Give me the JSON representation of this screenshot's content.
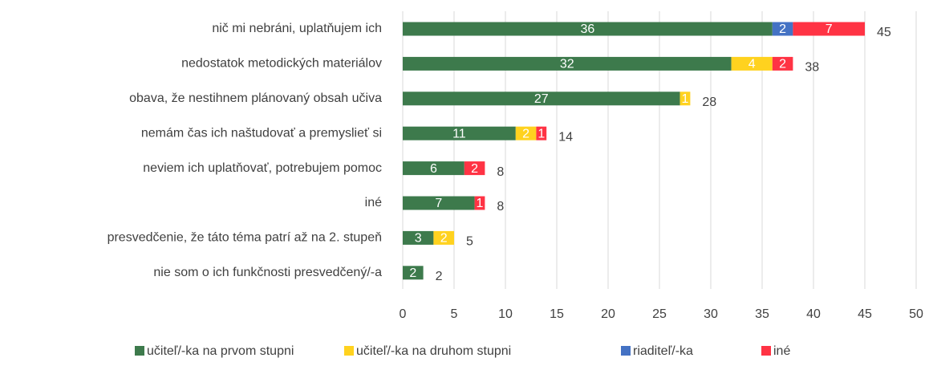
{
  "chart_data": {
    "type": "stacked-bar-horizontal",
    "categories": [
      "nič mi nebráni, uplatňujem ich",
      "nedostatok metodických materiálov",
      "obava, že nestihnem plánovaný obsah učiva",
      "nemám čas ich naštudovať a premyslieť si",
      "neviem ich uplatňovať, potrebujem pomoc",
      "iné",
      "presvedčenie, že táto téma patrí až na 2. stupeň",
      "nie som o ich funkčnosti presvedčený/-a"
    ],
    "series": [
      {
        "name": "učiteľ/-ka na prvom stupni",
        "color": "#3d7a4c",
        "values": [
          36,
          32,
          27,
          11,
          6,
          7,
          3,
          2
        ]
      },
      {
        "name": "učiteľ/-ka na druhom stupni",
        "color": "#ffd21f",
        "values": [
          null,
          4,
          1,
          2,
          null,
          null,
          2,
          null
        ]
      },
      {
        "name": "riaditeľ/-ka",
        "color": "#4472c4",
        "values": [
          2,
          null,
          null,
          null,
          null,
          null,
          null,
          null
        ]
      },
      {
        "name": "iné",
        "color": "#ff3344",
        "values": [
          7,
          2,
          null,
          1,
          2,
          1,
          null,
          null
        ]
      }
    ],
    "totals": [
      45,
      38,
      28,
      14,
      8,
      8,
      5,
      2
    ],
    "xlim": [
      0,
      50
    ],
    "xticks": [
      0,
      5,
      10,
      15,
      20,
      25,
      30,
      35,
      40,
      45,
      50
    ],
    "grid": true,
    "legend": "bottom"
  }
}
